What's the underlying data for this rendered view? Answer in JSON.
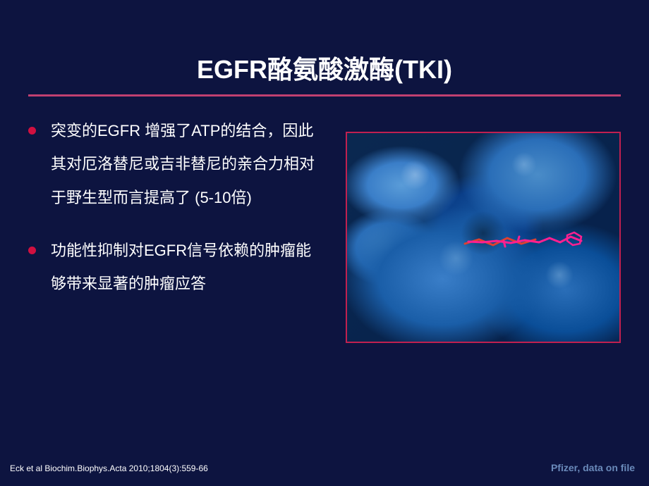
{
  "title": {
    "text": "EGFR酪氨酸激酶(TKI)",
    "fontsize": 36,
    "color": "#ffffff"
  },
  "divider": {
    "color": "#c04070",
    "thickness": 3
  },
  "bullets": {
    "marker_color": "#d01040",
    "text_color": "#ffffff",
    "fontsize": 22,
    "items": [
      "突变的EGFR 增强了ATP的结合，因此其对厄洛替尼或吉非替尼的亲合力相对于野生型而言提高了 (5-10倍)",
      "功能性抑制对EGFR信号依赖的肿瘤能够带来显著的肿瘤应答"
    ]
  },
  "figure": {
    "border_color": "#c02050",
    "bg_gradient_top": "#0a2850",
    "protein_colors": [
      "#5a9cd8",
      "#4a8cc8",
      "#3a7ec8",
      "#2a6eb8",
      "#1a5ea8",
      "#0a4e98"
    ],
    "ligand_color": "#ff2090",
    "ligand_accent": "#e04030"
  },
  "citation": {
    "text": "Eck et al Biochim.Biophys.Acta 2010;1804(3):559-66",
    "fontsize": 12,
    "color": "#ffffff"
  },
  "company": {
    "text": "Pfizer, data on file",
    "fontsize": 14,
    "color": "#6a8aba"
  },
  "background_color": "#0d1440"
}
